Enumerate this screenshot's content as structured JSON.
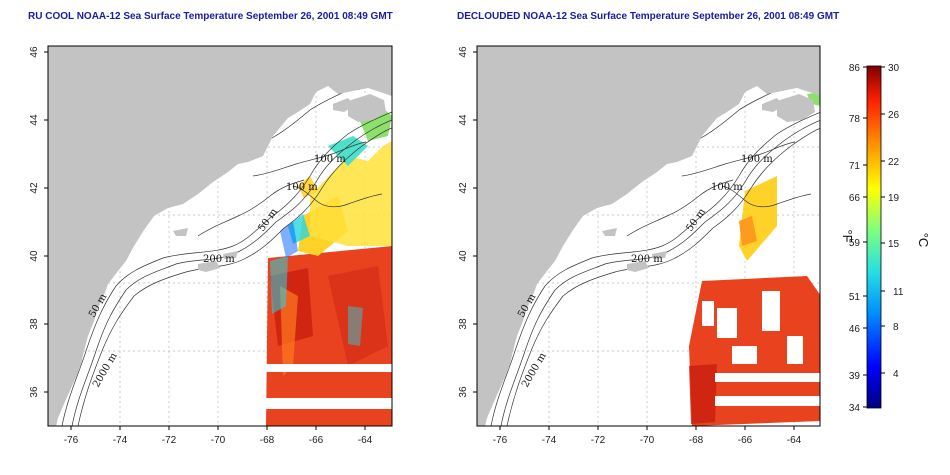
{
  "panels": [
    {
      "id": "left",
      "title": "RU COOL NOAA-12 Sea Surface Temperature September 26, 2001 08:49 GMT"
    },
    {
      "id": "right",
      "title": "DECLOUDED NOAA-12 Sea Surface Temperature September 26, 2001 08:49 GMT"
    }
  ],
  "axes": {
    "lat_ticks": [
      "36",
      "38",
      "40",
      "42",
      "44",
      "46"
    ],
    "lon_ticks": [
      "-76",
      "-74",
      "-72",
      "-70",
      "-68",
      "-66",
      "-64"
    ]
  },
  "contour_labels": {
    "left": [
      "50 m",
      "2000 m",
      "200 m",
      "50 m",
      "100 m",
      "100 m"
    ],
    "right": [
      "50 m",
      "2000 m",
      "200 m",
      "50 m",
      "100 m",
      "100 m"
    ]
  },
  "colorbar": {
    "fahrenheit_ticks": [
      "86",
      "78",
      "71",
      "66",
      "59",
      "51",
      "46",
      "39",
      "34"
    ],
    "celsius_ticks": [
      "30",
      "26",
      "22",
      "19",
      "15",
      "11",
      "8",
      "4"
    ],
    "fahrenheit_unit": "°F",
    "celsius_unit": "°C"
  },
  "colors": {
    "land": "#c3c3c3",
    "title": "#1a1aa6",
    "sst_warm": "#e8421e",
    "sst_hot": "#c81e0e",
    "sst_cool": "#ffd22a",
    "sst_cold": "#26d6e0"
  }
}
